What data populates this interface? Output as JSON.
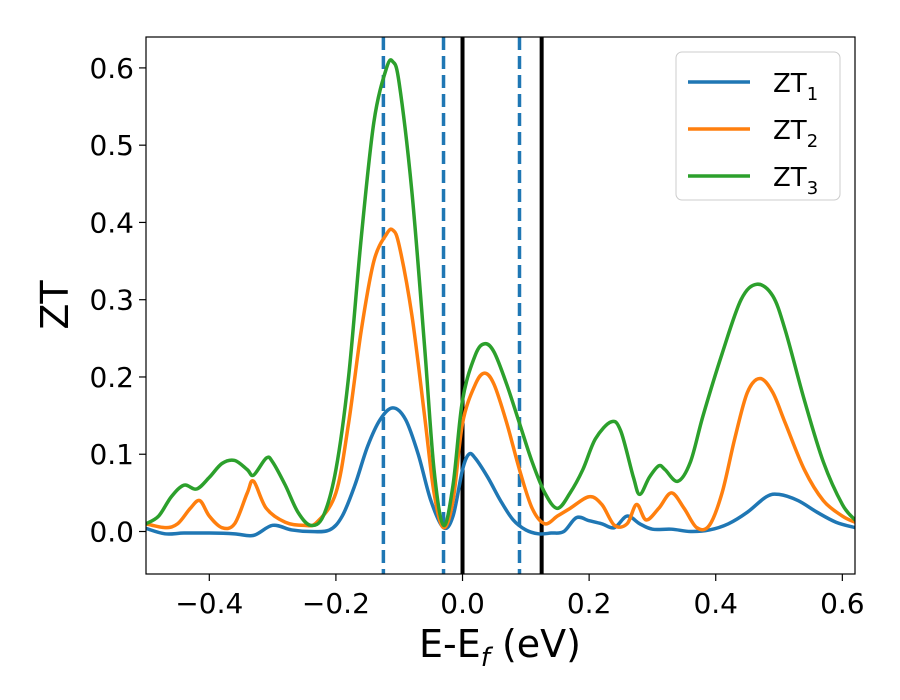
{
  "chart_data": {
    "type": "line",
    "xlabel": "E-E",
    "xlabel_sub": "f",
    "xlabel_unit": " (eV)",
    "ylabel": "ZT",
    "xlim": [
      -0.5,
      0.62
    ],
    "ylim": [
      -0.055,
      0.64
    ],
    "xticks": [
      -0.4,
      -0.2,
      0.0,
      0.2,
      0.4,
      0.6
    ],
    "xtick_labels": [
      "−0.4",
      "−0.2",
      "0.0",
      "0.2",
      "0.4",
      "0.6"
    ],
    "yticks": [
      0.0,
      0.1,
      0.2,
      0.3,
      0.4,
      0.5,
      0.6
    ],
    "ytick_labels": [
      "0.0",
      "0.1",
      "0.2",
      "0.3",
      "0.4",
      "0.5",
      "0.6"
    ],
    "legend_position": "top-right",
    "vlines": [
      {
        "x": -0.125,
        "style": "dashed",
        "color": "#1f77b4"
      },
      {
        "x": -0.03,
        "style": "dashed",
        "color": "#1f77b4"
      },
      {
        "x": 0.0,
        "style": "solid",
        "color": "#000000"
      },
      {
        "x": 0.09,
        "style": "dashed",
        "color": "#1f77b4"
      },
      {
        "x": 0.125,
        "style": "solid",
        "color": "#000000"
      }
    ],
    "series": [
      {
        "name": "ZT",
        "name_sub": "1",
        "color": "#1f77b4",
        "points": [
          [
            -0.5,
            0.004
          ],
          [
            -0.47,
            -0.003
          ],
          [
            -0.44,
            -0.002
          ],
          [
            -0.4,
            -0.002
          ],
          [
            -0.36,
            -0.003
          ],
          [
            -0.33,
            -0.005
          ],
          [
            -0.3,
            0.008
          ],
          [
            -0.27,
            0.002
          ],
          [
            -0.24,
            0.0
          ],
          [
            -0.21,
            0.002
          ],
          [
            -0.19,
            0.02
          ],
          [
            -0.17,
            0.06
          ],
          [
            -0.15,
            0.11
          ],
          [
            -0.13,
            0.145
          ],
          [
            -0.11,
            0.16
          ],
          [
            -0.09,
            0.145
          ],
          [
            -0.07,
            0.1
          ],
          [
            -0.05,
            0.04
          ],
          [
            -0.03,
            0.005
          ],
          [
            -0.015,
            0.02
          ],
          [
            0.0,
            0.08
          ],
          [
            0.01,
            0.1
          ],
          [
            0.02,
            0.095
          ],
          [
            0.04,
            0.07
          ],
          [
            0.06,
            0.04
          ],
          [
            0.08,
            0.015
          ],
          [
            0.1,
            0.002
          ],
          [
            0.12,
            -0.003
          ],
          [
            0.14,
            -0.002
          ],
          [
            0.16,
            0.0
          ],
          [
            0.18,
            0.018
          ],
          [
            0.2,
            0.014
          ],
          [
            0.22,
            0.01
          ],
          [
            0.24,
            0.005
          ],
          [
            0.26,
            0.02
          ],
          [
            0.28,
            0.01
          ],
          [
            0.3,
            0.003
          ],
          [
            0.33,
            0.003
          ],
          [
            0.36,
            0.0
          ],
          [
            0.39,
            0.002
          ],
          [
            0.42,
            0.01
          ],
          [
            0.45,
            0.025
          ],
          [
            0.48,
            0.045
          ],
          [
            0.5,
            0.048
          ],
          [
            0.53,
            0.04
          ],
          [
            0.56,
            0.025
          ],
          [
            0.59,
            0.012
          ],
          [
            0.62,
            0.005
          ]
        ]
      },
      {
        "name": "ZT",
        "name_sub": "2",
        "color": "#ff7f0e",
        "points": [
          [
            -0.5,
            0.01
          ],
          [
            -0.47,
            0.005
          ],
          [
            -0.45,
            0.01
          ],
          [
            -0.43,
            0.03
          ],
          [
            -0.415,
            0.04
          ],
          [
            -0.4,
            0.02
          ],
          [
            -0.38,
            0.005
          ],
          [
            -0.36,
            0.01
          ],
          [
            -0.34,
            0.05
          ],
          [
            -0.33,
            0.065
          ],
          [
            -0.31,
            0.03
          ],
          [
            -0.28,
            0.012
          ],
          [
            -0.25,
            0.008
          ],
          [
            -0.23,
            0.012
          ],
          [
            -0.2,
            0.05
          ],
          [
            -0.18,
            0.14
          ],
          [
            -0.16,
            0.26
          ],
          [
            -0.14,
            0.35
          ],
          [
            -0.12,
            0.385
          ],
          [
            -0.11,
            0.39
          ],
          [
            -0.1,
            0.37
          ],
          [
            -0.08,
            0.28
          ],
          [
            -0.06,
            0.15
          ],
          [
            -0.045,
            0.05
          ],
          [
            -0.03,
            0.005
          ],
          [
            -0.015,
            0.04
          ],
          [
            0.0,
            0.14
          ],
          [
            0.02,
            0.19
          ],
          [
            0.035,
            0.205
          ],
          [
            0.05,
            0.19
          ],
          [
            0.07,
            0.14
          ],
          [
            0.09,
            0.08
          ],
          [
            0.11,
            0.03
          ],
          [
            0.13,
            0.01
          ],
          [
            0.15,
            0.02
          ],
          [
            0.17,
            0.03
          ],
          [
            0.2,
            0.045
          ],
          [
            0.22,
            0.035
          ],
          [
            0.24,
            0.008
          ],
          [
            0.26,
            0.01
          ],
          [
            0.275,
            0.035
          ],
          [
            0.29,
            0.015
          ],
          [
            0.31,
            0.03
          ],
          [
            0.33,
            0.05
          ],
          [
            0.35,
            0.03
          ],
          [
            0.37,
            0.005
          ],
          [
            0.39,
            0.008
          ],
          [
            0.41,
            0.05
          ],
          [
            0.43,
            0.12
          ],
          [
            0.45,
            0.18
          ],
          [
            0.47,
            0.198
          ],
          [
            0.49,
            0.18
          ],
          [
            0.51,
            0.14
          ],
          [
            0.54,
            0.08
          ],
          [
            0.57,
            0.04
          ],
          [
            0.6,
            0.02
          ],
          [
            0.62,
            0.012
          ]
        ]
      },
      {
        "name": "ZT",
        "name_sub": "3",
        "color": "#2ca02c",
        "points": [
          [
            -0.5,
            0.01
          ],
          [
            -0.48,
            0.02
          ],
          [
            -0.46,
            0.045
          ],
          [
            -0.44,
            0.06
          ],
          [
            -0.42,
            0.055
          ],
          [
            -0.4,
            0.07
          ],
          [
            -0.38,
            0.088
          ],
          [
            -0.36,
            0.092
          ],
          [
            -0.34,
            0.08
          ],
          [
            -0.33,
            0.073
          ],
          [
            -0.31,
            0.095
          ],
          [
            -0.3,
            0.09
          ],
          [
            -0.28,
            0.06
          ],
          [
            -0.26,
            0.025
          ],
          [
            -0.24,
            0.008
          ],
          [
            -0.22,
            0.02
          ],
          [
            -0.2,
            0.08
          ],
          [
            -0.18,
            0.2
          ],
          [
            -0.16,
            0.38
          ],
          [
            -0.14,
            0.53
          ],
          [
            -0.12,
            0.6
          ],
          [
            -0.11,
            0.608
          ],
          [
            -0.1,
            0.58
          ],
          [
            -0.08,
            0.44
          ],
          [
            -0.06,
            0.24
          ],
          [
            -0.045,
            0.08
          ],
          [
            -0.03,
            0.008
          ],
          [
            -0.015,
            0.06
          ],
          [
            0.0,
            0.17
          ],
          [
            0.02,
            0.228
          ],
          [
            0.035,
            0.243
          ],
          [
            0.05,
            0.232
          ],
          [
            0.07,
            0.19
          ],
          [
            0.09,
            0.14
          ],
          [
            0.11,
            0.09
          ],
          [
            0.13,
            0.05
          ],
          [
            0.15,
            0.03
          ],
          [
            0.17,
            0.05
          ],
          [
            0.19,
            0.08
          ],
          [
            0.21,
            0.12
          ],
          [
            0.235,
            0.142
          ],
          [
            0.25,
            0.13
          ],
          [
            0.27,
            0.07
          ],
          [
            0.28,
            0.048
          ],
          [
            0.295,
            0.07
          ],
          [
            0.31,
            0.085
          ],
          [
            0.32,
            0.08
          ],
          [
            0.34,
            0.065
          ],
          [
            0.36,
            0.09
          ],
          [
            0.38,
            0.15
          ],
          [
            0.41,
            0.23
          ],
          [
            0.44,
            0.3
          ],
          [
            0.465,
            0.32
          ],
          [
            0.49,
            0.305
          ],
          [
            0.51,
            0.26
          ],
          [
            0.54,
            0.17
          ],
          [
            0.57,
            0.09
          ],
          [
            0.6,
            0.035
          ],
          [
            0.62,
            0.015
          ]
        ]
      }
    ]
  }
}
